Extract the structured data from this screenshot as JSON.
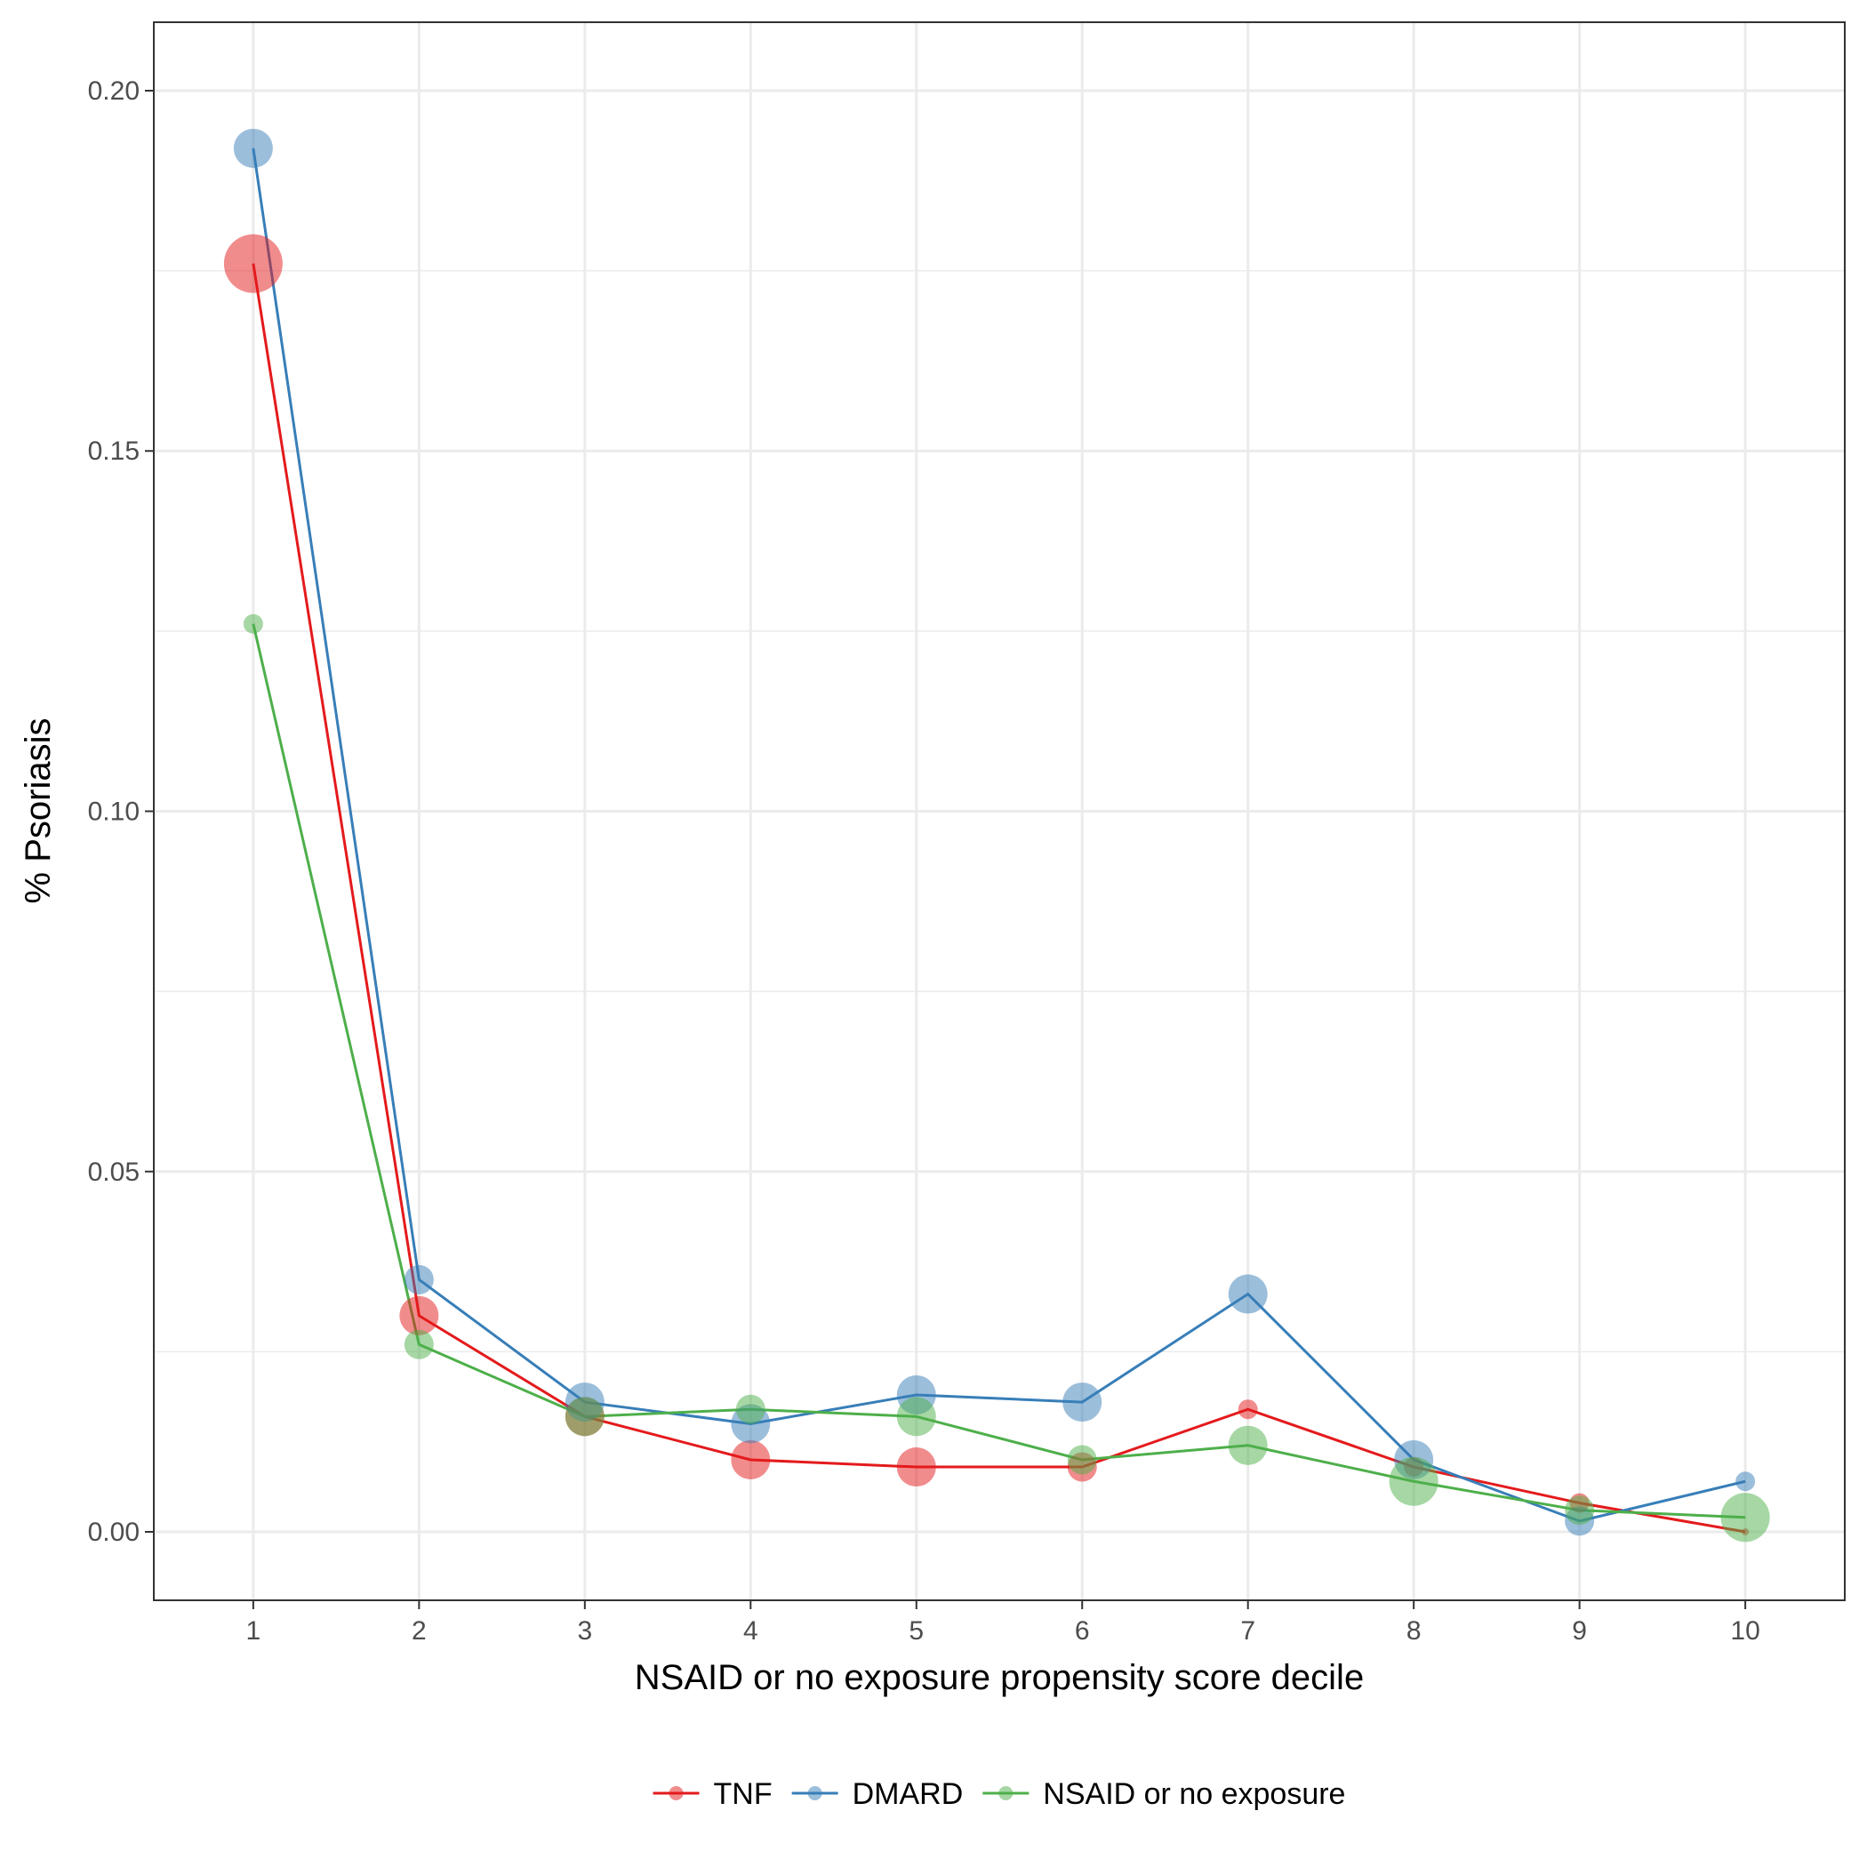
{
  "chart_data": {
    "type": "line",
    "xlabel": "NSAID or no exposure propensity score decile",
    "ylabel": "% Psoriasis",
    "x": [
      1,
      2,
      3,
      4,
      5,
      6,
      7,
      8,
      9,
      10
    ],
    "xlim": [
      0.4,
      10.6
    ],
    "ylim": [
      -0.0095,
      0.2095
    ],
    "y_ticks": [
      0.0,
      0.05,
      0.1,
      0.15,
      0.2
    ],
    "y_tick_labels": [
      "0.00",
      "0.05",
      "0.10",
      "0.15",
      "0.20"
    ],
    "y_minor_ticks": [
      0.025,
      0.075,
      0.125,
      0.175
    ],
    "x_tick_labels": [
      "1",
      "2",
      "3",
      "4",
      "5",
      "6",
      "7",
      "8",
      "9",
      "10"
    ],
    "grid": true,
    "legend_position": "bottom",
    "series": [
      {
        "name": "TNF",
        "color": "#e41a1c",
        "values": [
          0.176,
          0.03,
          0.016,
          0.01,
          0.009,
          0.009,
          0.017,
          0.009,
          0.004,
          0.0
        ],
        "point_sizes": [
          3,
          2,
          2,
          2,
          2,
          1.5,
          1,
          1,
          1,
          0.3
        ]
      },
      {
        "name": "DMARD",
        "color": "#377eb8",
        "values": [
          0.192,
          0.035,
          0.018,
          0.015,
          0.019,
          0.018,
          0.033,
          0.01,
          0.0015,
          0.007
        ],
        "point_sizes": [
          2,
          1.5,
          2,
          2,
          2,
          2,
          2,
          2,
          1.5,
          1
        ]
      },
      {
        "name": "NSAID or no exposure",
        "color": "#4daf4a",
        "values": [
          0.126,
          0.026,
          0.016,
          0.017,
          0.016,
          0.01,
          0.012,
          0.007,
          0.003,
          0.002
        ],
        "point_sizes": [
          1,
          1.5,
          2,
          1.5,
          2,
          1.5,
          2,
          2.5,
          1.5,
          2.5
        ]
      }
    ]
  }
}
